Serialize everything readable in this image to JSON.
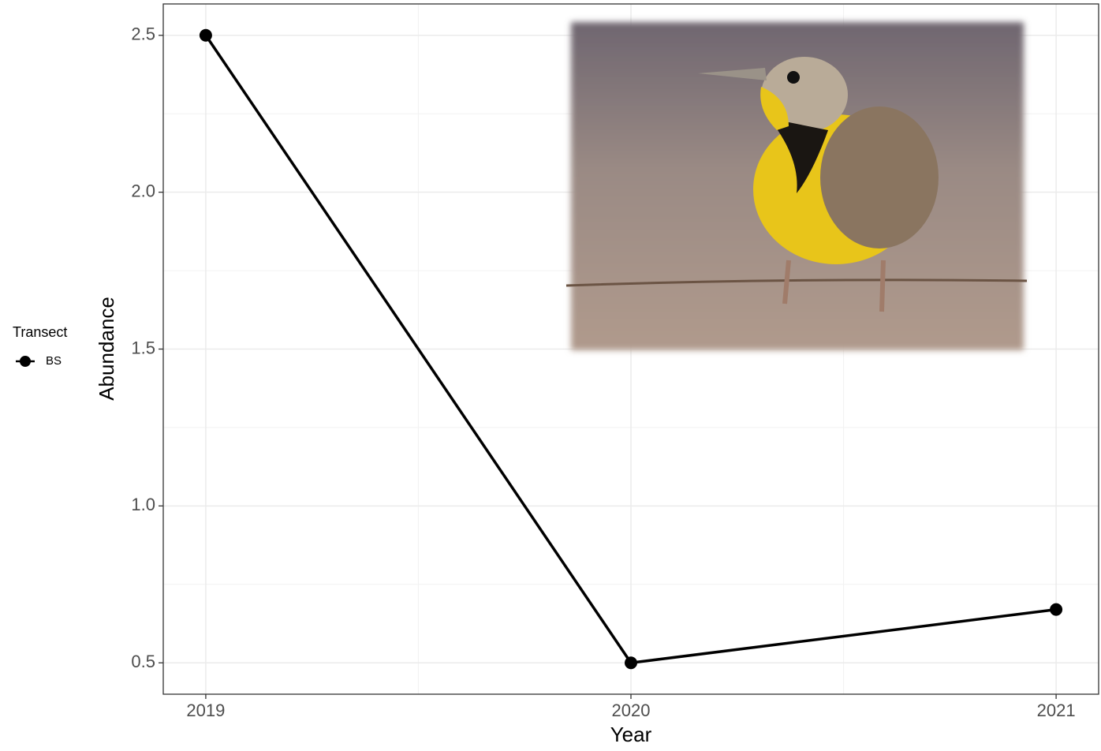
{
  "chart_data": {
    "type": "line",
    "x_label": "Year",
    "y_label": "Abundance",
    "x": [
      2019,
      2020,
      2021
    ],
    "series": [
      {
        "name": "BS",
        "color": "#000000",
        "values": [
          2.5,
          0.5,
          0.67
        ]
      }
    ],
    "xlim": [
      2018.9,
      2021.1
    ],
    "xticks": [
      2019,
      2020,
      2021
    ],
    "ylim": [
      0.4,
      2.6
    ],
    "yticks": [
      0.5,
      {
        "value": 1,
        "label": "1.0"
      },
      1.5,
      {
        "value": 2,
        "label": "2.0"
      },
      2.5
    ],
    "grid": true,
    "legend": {
      "title": "Transect",
      "position": "left"
    }
  }
}
